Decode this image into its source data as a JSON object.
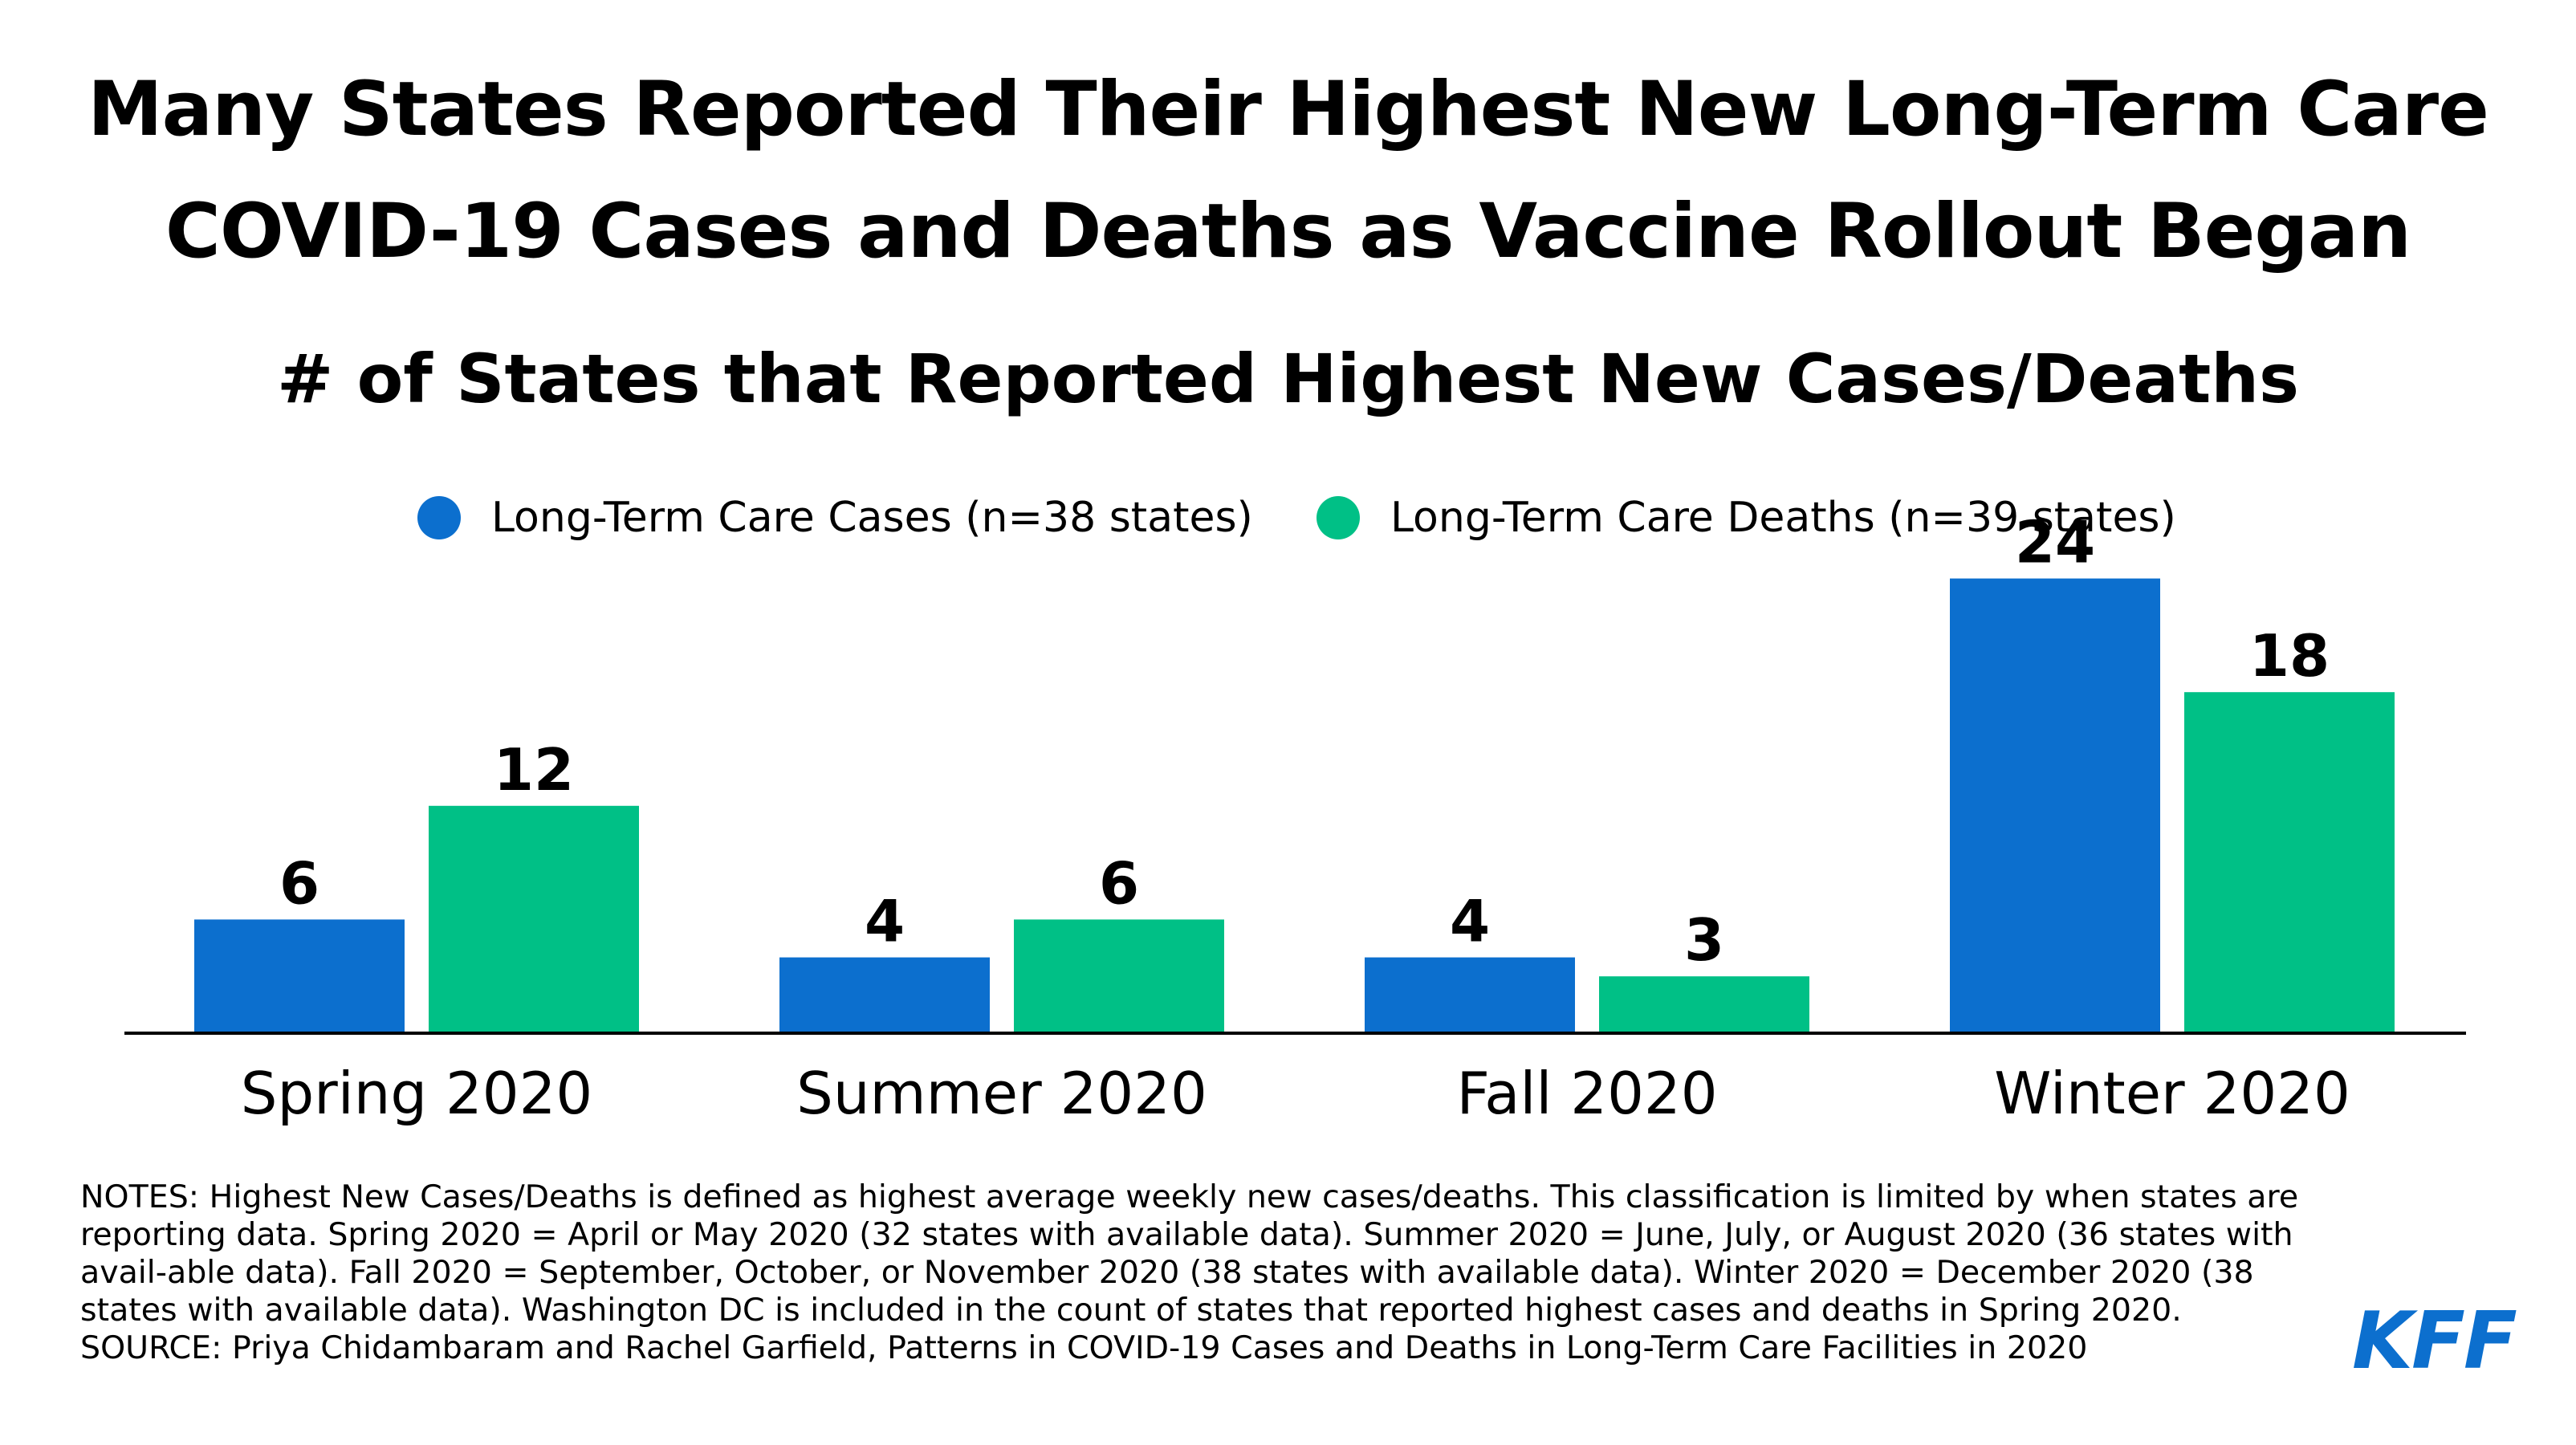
{
  "header": {
    "title_line_1": "Many States Reported Their Highest New Long-Term Care",
    "title_line_2": "COVID-19 Cases and Deaths as Vaccine Rollout Began",
    "subtitle": "# of States that Reported Highest New Cases/Deaths"
  },
  "legend": {
    "cases_label": "Long-Term Care Cases (n=38 states)",
    "deaths_label": "Long-Term Care Deaths (n=39 states)"
  },
  "colors": {
    "cases": "#0c6fce",
    "deaths": "#00c086",
    "axis": "#000000",
    "logo": "#0c6fce"
  },
  "chart_data": {
    "type": "bar",
    "categories": [
      "Spring 2020",
      "Summer 2020",
      "Fall 2020",
      "Winter 2020"
    ],
    "series": [
      {
        "name": "Long-Term Care Cases (n=38 states)",
        "values": [
          6,
          4,
          4,
          24
        ]
      },
      {
        "name": "Long-Term Care Deaths (n=39 states)",
        "values": [
          12,
          6,
          3,
          18
        ]
      }
    ],
    "title": "# of States that Reported Highest New Cases/Deaths",
    "xlabel": "",
    "ylabel": "",
    "ylim": [
      0,
      26
    ],
    "grid": false,
    "legend_position": "top-center",
    "data_labels": true
  },
  "notes": {
    "notes_text": "NOTES: Highest New Cases/Deaths is defined as highest average weekly new cases/deaths. This classification is limited by when states are reporting data. Spring 2020 = April or May 2020 (32 states with available data). Summer 2020 = June, July, or August 2020 (36 states with avail-able data). Fall 2020 = September, October, or November 2020 (38 states with available data). Winter 2020 = December 2020 (38 states with available data). Washington DC is included in the count of states that reported highest cases and deaths in Spring 2020.",
    "source_text": "SOURCE: Priya Chidambaram and Rachel Garfield, Patterns in COVID-19 Cases and Deaths in Long-Term Care Facilities in 2020"
  },
  "logo": {
    "text": "KFF"
  }
}
